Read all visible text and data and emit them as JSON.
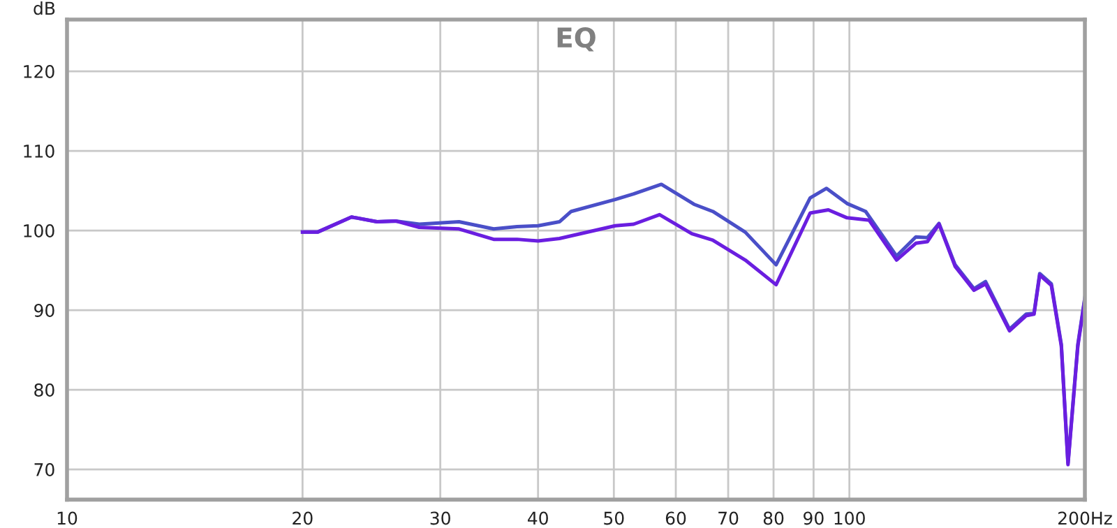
{
  "chart_data": {
    "type": "line",
    "title": "EQ",
    "ylabel": "dB",
    "log": "x",
    "xlim": [
      10,
      200
    ],
    "ylim": [
      66.2,
      126.5
    ],
    "xticks": [
      10,
      20,
      30,
      40,
      50,
      60,
      70,
      80,
      90,
      100,
      {
        "value": 200,
        "label": "200Hz"
      }
    ],
    "yticks": [
      70,
      80,
      90,
      100,
      110,
      120
    ],
    "grid": true,
    "marker": "none",
    "line_style": "solid",
    "series": [
      {
        "color": "#4a4fc8",
        "x": [
          20,
          20.9,
          23.1,
          24.9,
          26.3,
          28.2,
          31.7,
          35.1,
          37.6,
          40,
          42.6,
          44.1,
          50.2,
          53,
          57.5,
          63.3,
          66.9,
          73.6,
          80.6,
          89.1,
          93.5,
          99.3,
          104.9,
          114.9,
          121.6,
          125.8,
          130.2,
          136.5,
          144.3,
          149.3,
          160.2,
          168.2,
          172.2,
          175.1,
          181.2,
          186.6,
          190.3,
          195.9,
          200
        ],
        "values": [
          99.8,
          99.8,
          101.7,
          101.1,
          101.2,
          100.8,
          101.1,
          100.2,
          100.5,
          100.6,
          101.1,
          102.4,
          103.9,
          104.6,
          105.8,
          103.3,
          102.4,
          99.8,
          95.7,
          104.1,
          105.3,
          103.4,
          102.4,
          96.8,
          99.2,
          99.1,
          100.9,
          95.7,
          92.7,
          93.6,
          87.6,
          89.5,
          89.6,
          94.6,
          93.3,
          85.7,
          70.8,
          85.7,
          91.6
        ]
      },
      {
        "color": "#6a1ee0",
        "x": [
          20,
          20.9,
          23.1,
          24.9,
          26.3,
          28.2,
          31.7,
          35.1,
          37.6,
          40,
          42.6,
          50.2,
          53,
          57.2,
          62.9,
          66.9,
          73.6,
          80.6,
          89.1,
          94,
          99.3,
          106,
          114.9,
          121.6,
          125.8,
          130.2,
          136.5,
          144.3,
          149.3,
          160.2,
          168.2,
          172.2,
          175.1,
          181.2,
          186.6,
          190.3,
          195.9,
          200
        ],
        "values": [
          99.8,
          99.8,
          101.7,
          101.1,
          101.2,
          100.4,
          100.2,
          98.9,
          98.9,
          98.7,
          99.0,
          100.6,
          100.8,
          102.0,
          99.6,
          98.8,
          96.3,
          93.2,
          102.2,
          102.6,
          101.6,
          101.3,
          96.3,
          98.4,
          98.6,
          100.8,
          95.5,
          92.5,
          93.3,
          87.4,
          89.3,
          89.5,
          94.4,
          93.1,
          85.5,
          70.6,
          85.5,
          91.4
        ]
      }
    ]
  }
}
